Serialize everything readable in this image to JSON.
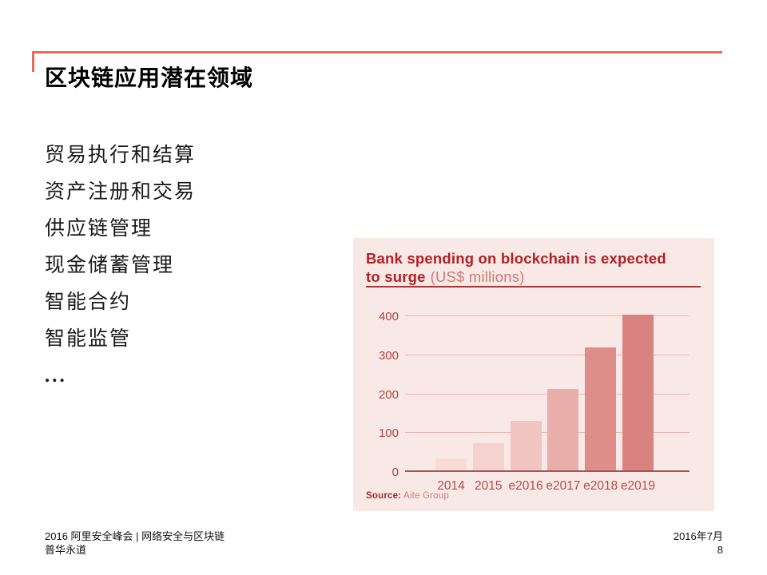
{
  "slide": {
    "title": "区块链应用潜在领域",
    "accent_color": "#e8695e",
    "topics": [
      "贸易执行和结算",
      "资产注册和交易",
      "供应链管理",
      "现金储蓄管理",
      "智能合约",
      "智能监管",
      "..."
    ],
    "footer": {
      "left_line1": "2016 阿里安全峰会 | 网络安全与区块链",
      "left_line2": "普华永道",
      "date": "2016年7月",
      "page_number": "8"
    }
  },
  "chart_data": {
    "type": "bar",
    "title_line1": "Bank spending on blockchain is expected",
    "title_line2_bold": "to surge",
    "title_unit": "(US$ millions)",
    "categories": [
      "2014",
      "2015",
      "e2016",
      "e2017",
      "e2018",
      "e2019"
    ],
    "values": [
      30,
      70,
      128,
      210,
      315,
      400
    ],
    "y_ticks": [
      0,
      100,
      200,
      300,
      400
    ],
    "ylim": [
      0,
      400
    ],
    "grid_on": true,
    "legend": "none",
    "source_label": "Source:",
    "source_value": "Aite Group",
    "colors": {
      "panel_bg": "#f9e9e6",
      "title": "#b32025",
      "title_unit": "#cd7a76",
      "divider": "#a93632",
      "gridline": "#ecb3ae",
      "baseline": "#a6524e",
      "y_tick_label": "#b2423f",
      "x_tick_label": "#b54b47",
      "source_label": "#9e2b25",
      "source_value": "#c97f7a",
      "bars": [
        "#f6dbd8",
        "#f4d2cf",
        "#f0c5c2",
        "#e7aeaa",
        "#dd8e8a",
        "#d98380"
      ]
    }
  }
}
